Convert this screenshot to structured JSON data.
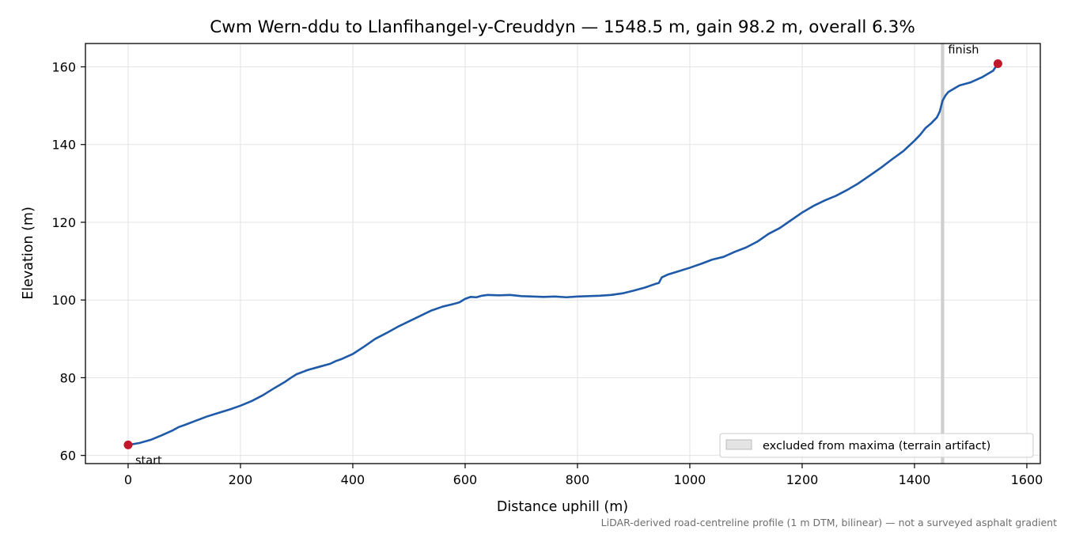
{
  "chart_data": {
    "type": "line",
    "title": "Cwm Wern-ddu to Llanfihangel-y-Creuddyn — 1548.5 m, gain 98.2 m, overall 6.3%",
    "xlabel": "Distance uphill (m)",
    "ylabel": "Elevation (m)",
    "xlim": [
      -76,
      1624
    ],
    "ylim": [
      57.9,
      166.0
    ],
    "xticks": [
      0,
      200,
      400,
      600,
      800,
      1000,
      1200,
      1400,
      1600
    ],
    "yticks": [
      60,
      80,
      100,
      120,
      140,
      160
    ],
    "grid": true,
    "series": [
      {
        "color": "#1f5aa8",
        "points": [
          [
            0,
            62.7
          ],
          [
            20,
            63.2
          ],
          [
            40,
            64.0
          ],
          [
            60,
            65.2
          ],
          [
            80,
            66.5
          ],
          [
            90,
            67.3
          ],
          [
            100,
            67.8
          ],
          [
            120,
            68.9
          ],
          [
            140,
            70.0
          ],
          [
            160,
            70.9
          ],
          [
            180,
            71.8
          ],
          [
            200,
            72.8
          ],
          [
            220,
            74.0
          ],
          [
            240,
            75.5
          ],
          [
            260,
            77.3
          ],
          [
            280,
            79.0
          ],
          [
            290,
            80.0
          ],
          [
            300,
            80.9
          ],
          [
            320,
            82.0
          ],
          [
            340,
            82.8
          ],
          [
            360,
            83.6
          ],
          [
            370,
            84.3
          ],
          [
            380,
            84.8
          ],
          [
            400,
            86.1
          ],
          [
            420,
            88.0
          ],
          [
            440,
            90.0
          ],
          [
            460,
            91.5
          ],
          [
            480,
            93.1
          ],
          [
            500,
            94.5
          ],
          [
            520,
            95.9
          ],
          [
            540,
            97.3
          ],
          [
            560,
            98.3
          ],
          [
            580,
            99.0
          ],
          [
            590,
            99.4
          ],
          [
            600,
            100.3
          ],
          [
            610,
            100.8
          ],
          [
            620,
            100.7
          ],
          [
            630,
            101.1
          ],
          [
            640,
            101.3
          ],
          [
            660,
            101.2
          ],
          [
            680,
            101.3
          ],
          [
            700,
            101.0
          ],
          [
            720,
            100.9
          ],
          [
            740,
            100.8
          ],
          [
            760,
            100.9
          ],
          [
            780,
            100.7
          ],
          [
            800,
            100.9
          ],
          [
            820,
            101.0
          ],
          [
            840,
            101.1
          ],
          [
            860,
            101.3
          ],
          [
            880,
            101.7
          ],
          [
            900,
            102.4
          ],
          [
            920,
            103.2
          ],
          [
            940,
            104.2
          ],
          [
            945,
            104.4
          ],
          [
            950,
            105.8
          ],
          [
            960,
            106.5
          ],
          [
            980,
            107.4
          ],
          [
            1000,
            108.3
          ],
          [
            1020,
            109.3
          ],
          [
            1040,
            110.4
          ],
          [
            1060,
            111.1
          ],
          [
            1080,
            112.4
          ],
          [
            1100,
            113.5
          ],
          [
            1120,
            115.0
          ],
          [
            1140,
            117.0
          ],
          [
            1160,
            118.5
          ],
          [
            1180,
            120.5
          ],
          [
            1200,
            122.5
          ],
          [
            1220,
            124.2
          ],
          [
            1240,
            125.6
          ],
          [
            1260,
            126.8
          ],
          [
            1280,
            128.3
          ],
          [
            1300,
            130.0
          ],
          [
            1320,
            132.0
          ],
          [
            1340,
            134.0
          ],
          [
            1360,
            136.2
          ],
          [
            1380,
            138.3
          ],
          [
            1400,
            141.0
          ],
          [
            1410,
            142.5
          ],
          [
            1420,
            144.3
          ],
          [
            1430,
            145.5
          ],
          [
            1440,
            147.0
          ],
          [
            1445,
            148.5
          ],
          [
            1450,
            151.3
          ],
          [
            1455,
            152.6
          ],
          [
            1460,
            153.5
          ],
          [
            1480,
            155.2
          ],
          [
            1500,
            156.0
          ],
          [
            1520,
            157.3
          ],
          [
            1540,
            159.0
          ],
          [
            1548.5,
            160.8
          ]
        ]
      }
    ],
    "markers": [
      {
        "x": 0,
        "y": 62.7,
        "color": "#c0182a"
      },
      {
        "x": 1548.5,
        "y": 160.8,
        "color": "#c0182a"
      }
    ],
    "excluded_band": {
      "x0": 1447,
      "x1": 1453,
      "color": "#cfcfcf"
    },
    "annotations": {
      "start": "start",
      "finish": "finish"
    },
    "legend": {
      "position": "lower right",
      "label": "excluded from maxima (terrain artifact)"
    },
    "footnote": "LiDAR-derived road-centreline profile (1 m DTM, bilinear) — not a surveyed asphalt gradient"
  }
}
